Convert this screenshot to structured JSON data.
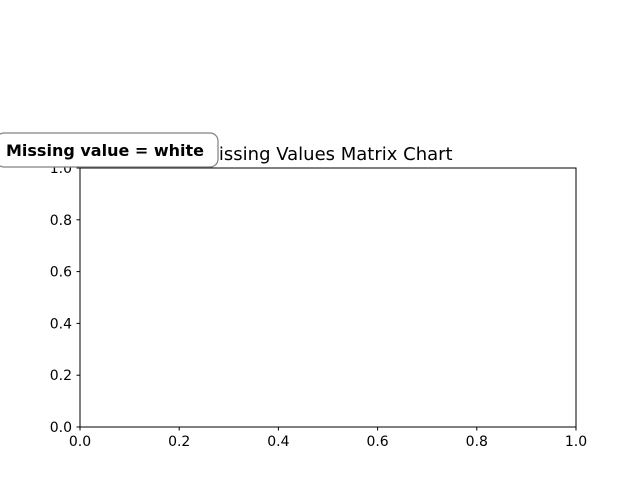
{
  "chart_data": {
    "type": "heatmap",
    "title": "Missing Values Matrix Chart",
    "annotation": "Missing value = white",
    "xlabel": "",
    "ylabel": "",
    "xlim": [
      0.0,
      1.0
    ],
    "ylim": [
      0.0,
      1.0
    ],
    "x_ticks": [
      "0.0",
      "0.2",
      "0.4",
      "0.6",
      "0.8",
      "1.0"
    ],
    "y_ticks": [
      "0.0",
      "0.2",
      "0.4",
      "0.6",
      "0.8",
      "1.0"
    ],
    "grid": false,
    "values": []
  }
}
